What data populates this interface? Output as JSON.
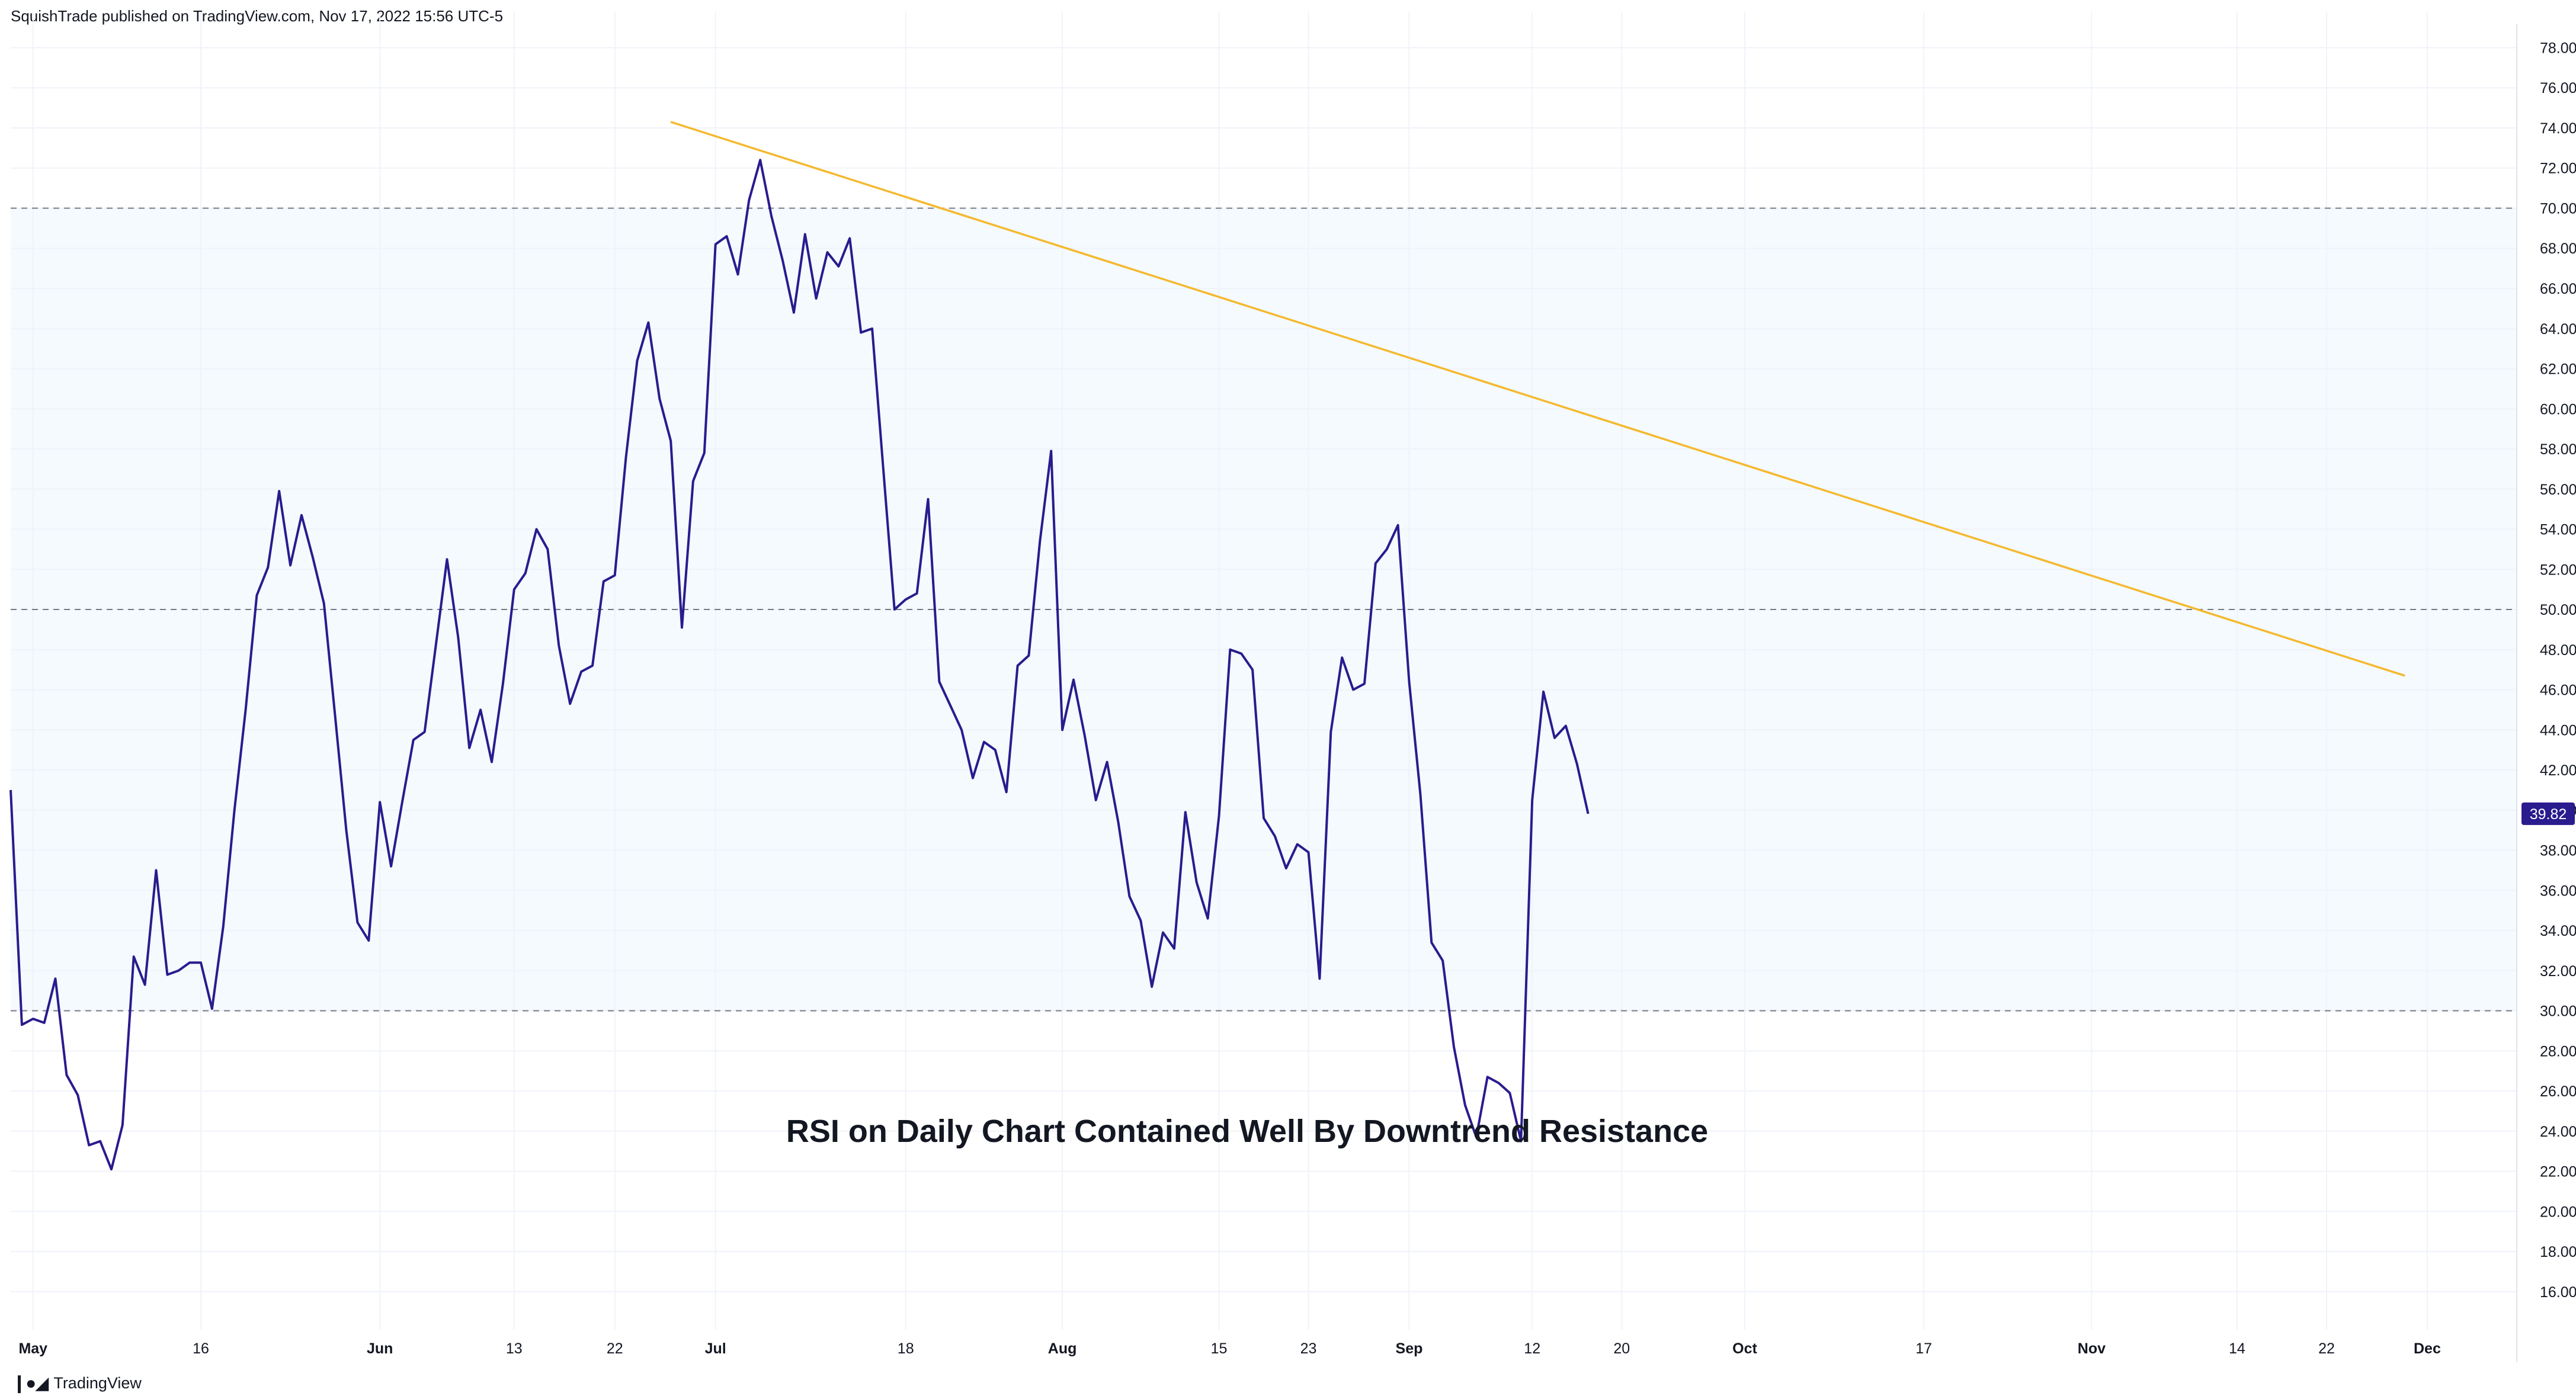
{
  "header": {
    "text": "SquishTrade published on TradingView.com, Nov 17, 2022 15:56 UTC-5"
  },
  "footer": {
    "logo_icon": "tradingview-logo-icon",
    "brand": "TradingView"
  },
  "colors": {
    "rsi_line": "#2a1b8e",
    "trendline": "#f5b82e",
    "band_fill": "#f4fafd",
    "level_line": "#787b86",
    "grid": "#f0f3fa",
    "last_tag_bg": "#2a1b8e"
  },
  "chart_data": {
    "type": "line",
    "title": "",
    "annotation": "RSI on Daily Chart Contained Well By Downtrend Resistance",
    "y_axis_side": "right",
    "ylim": [
      14.4,
      78.9
    ],
    "yticks": [
      "16.00",
      "18.00",
      "20.00",
      "22.00",
      "24.00",
      "26.00",
      "28.00",
      "30.00",
      "32.00",
      "34.00",
      "36.00",
      "38.00",
      "40.00",
      "42.00",
      "44.00",
      "46.00",
      "48.00",
      "50.00",
      "52.00",
      "54.00",
      "56.00",
      "58.00",
      "60.00",
      "62.00",
      "64.00",
      "66.00",
      "68.00",
      "70.00",
      "72.00",
      "74.00",
      "76.00",
      "78.00"
    ],
    "x_ticks": [
      {
        "label": "May",
        "day": 0,
        "major": true
      },
      {
        "label": "16",
        "day": 15,
        "major": false
      },
      {
        "label": "Jun",
        "day": 31,
        "major": true
      },
      {
        "label": "13",
        "day": 43,
        "major": false
      },
      {
        "label": "22",
        "day": 52,
        "major": false
      },
      {
        "label": "Jul",
        "day": 61,
        "major": true
      },
      {
        "label": "18",
        "day": 78,
        "major": false
      },
      {
        "label": "Aug",
        "day": 92,
        "major": true
      },
      {
        "label": "15",
        "day": 106,
        "major": false
      },
      {
        "label": "23",
        "day": 114,
        "major": false
      },
      {
        "label": "Sep",
        "day": 123,
        "major": true
      },
      {
        "label": "12",
        "day": 134,
        "major": false
      },
      {
        "label": "20",
        "day": 142,
        "major": false
      },
      {
        "label": "Oct",
        "day": 153,
        "major": true
      },
      {
        "label": "17",
        "day": 169,
        "major": false
      },
      {
        "label": "Nov",
        "day": 184,
        "major": true
      },
      {
        "label": "14",
        "day": 197,
        "major": false
      },
      {
        "label": "22",
        "day": 205,
        "major": false
      },
      {
        "label": "Dec",
        "day": 214,
        "major": true
      }
    ],
    "x_range_days": [
      -2,
      222
    ],
    "levels": [
      70,
      50,
      30
    ],
    "band": [
      30,
      70
    ],
    "last_value": {
      "label": "39.82",
      "value": 39.82
    },
    "series": [
      {
        "values": [
          {
            "x": -2,
            "y": 41.0
          },
          {
            "x": -1,
            "y": 29.3
          },
          {
            "x": 0,
            "y": 29.6
          },
          {
            "x": 1,
            "y": 29.4
          },
          {
            "x": 2,
            "y": 31.6
          },
          {
            "x": 3,
            "y": 26.8
          },
          {
            "x": 4,
            "y": 25.8
          },
          {
            "x": 5,
            "y": 23.3
          },
          {
            "x": 6,
            "y": 23.5
          },
          {
            "x": 7,
            "y": 22.1
          },
          {
            "x": 8,
            "y": 24.3
          },
          {
            "x": 9,
            "y": 32.7
          },
          {
            "x": 10,
            "y": 31.3
          },
          {
            "x": 11,
            "y": 37.0
          },
          {
            "x": 12,
            "y": 31.8
          },
          {
            "x": 13,
            "y": 32.0
          },
          {
            "x": 14,
            "y": 32.4
          },
          {
            "x": 15,
            "y": 32.4
          },
          {
            "x": 16,
            "y": 30.1
          },
          {
            "x": 17,
            "y": 34.2
          },
          {
            "x": 18,
            "y": 40.0
          },
          {
            "x": 19,
            "y": 45.0
          },
          {
            "x": 20,
            "y": 50.7
          },
          {
            "x": 21,
            "y": 52.1
          },
          {
            "x": 22,
            "y": 55.9
          },
          {
            "x": 23,
            "y": 52.2
          },
          {
            "x": 24,
            "y": 54.7
          },
          {
            "x": 25,
            "y": 52.6
          },
          {
            "x": 26,
            "y": 50.3
          },
          {
            "x": 27,
            "y": 44.7
          },
          {
            "x": 28,
            "y": 39.0
          },
          {
            "x": 29,
            "y": 34.4
          },
          {
            "x": 30,
            "y": 33.5
          },
          {
            "x": 31,
            "y": 40.4
          },
          {
            "x": 32,
            "y": 37.2
          },
          {
            "x": 33,
            "y": 40.4
          },
          {
            "x": 34,
            "y": 43.5
          },
          {
            "x": 35,
            "y": 43.9
          },
          {
            "x": 36,
            "y": 48.2
          },
          {
            "x": 37,
            "y": 52.5
          },
          {
            "x": 38,
            "y": 48.6
          },
          {
            "x": 39,
            "y": 43.1
          },
          {
            "x": 40,
            "y": 45.0
          },
          {
            "x": 41,
            "y": 42.4
          },
          {
            "x": 42,
            "y": 46.3
          },
          {
            "x": 43,
            "y": 51.0
          },
          {
            "x": 44,
            "y": 51.8
          },
          {
            "x": 45,
            "y": 54.0
          },
          {
            "x": 46,
            "y": 53.0
          },
          {
            "x": 47,
            "y": 48.2
          },
          {
            "x": 48,
            "y": 45.3
          },
          {
            "x": 49,
            "y": 46.9
          },
          {
            "x": 50,
            "y": 47.2
          },
          {
            "x": 51,
            "y": 51.4
          },
          {
            "x": 52,
            "y": 51.7
          },
          {
            "x": 53,
            "y": 57.6
          },
          {
            "x": 54,
            "y": 62.4
          },
          {
            "x": 55,
            "y": 64.3
          },
          {
            "x": 56,
            "y": 60.5
          },
          {
            "x": 57,
            "y": 58.4
          },
          {
            "x": 58,
            "y": 49.1
          },
          {
            "x": 59,
            "y": 56.4
          },
          {
            "x": 60,
            "y": 57.8
          },
          {
            "x": 61,
            "y": 68.2
          },
          {
            "x": 62,
            "y": 68.6
          },
          {
            "x": 63,
            "y": 66.7
          },
          {
            "x": 64,
            "y": 70.4
          },
          {
            "x": 65,
            "y": 72.4
          },
          {
            "x": 66,
            "y": 69.6
          },
          {
            "x": 67,
            "y": 67.4
          },
          {
            "x": 68,
            "y": 64.8
          },
          {
            "x": 69,
            "y": 68.7
          },
          {
            "x": 70,
            "y": 65.5
          },
          {
            "x": 71,
            "y": 67.8
          },
          {
            "x": 72,
            "y": 67.1
          },
          {
            "x": 73,
            "y": 68.5
          },
          {
            "x": 74,
            "y": 63.8
          },
          {
            "x": 75,
            "y": 64.0
          },
          {
            "x": 76,
            "y": 57.0
          },
          {
            "x": 77,
            "y": 50.0
          },
          {
            "x": 78,
            "y": 50.5
          },
          {
            "x": 79,
            "y": 50.8
          },
          {
            "x": 80,
            "y": 55.5
          },
          {
            "x": 81,
            "y": 46.4
          },
          {
            "x": 82,
            "y": 45.2
          },
          {
            "x": 83,
            "y": 44.0
          },
          {
            "x": 84,
            "y": 41.6
          },
          {
            "x": 85,
            "y": 43.4
          },
          {
            "x": 86,
            "y": 43.0
          },
          {
            "x": 87,
            "y": 40.9
          },
          {
            "x": 88,
            "y": 47.2
          },
          {
            "x": 89,
            "y": 47.7
          },
          {
            "x": 90,
            "y": 53.4
          },
          {
            "x": 91,
            "y": 57.9
          },
          {
            "x": 92,
            "y": 44.0
          },
          {
            "x": 93,
            "y": 46.5
          },
          {
            "x": 94,
            "y": 43.7
          },
          {
            "x": 95,
            "y": 40.5
          },
          {
            "x": 96,
            "y": 42.4
          },
          {
            "x": 97,
            "y": 39.4
          },
          {
            "x": 98,
            "y": 35.7
          },
          {
            "x": 99,
            "y": 34.5
          },
          {
            "x": 100,
            "y": 31.2
          },
          {
            "x": 101,
            "y": 33.9
          },
          {
            "x": 102,
            "y": 33.1
          },
          {
            "x": 103,
            "y": 39.9
          },
          {
            "x": 104,
            "y": 36.4
          },
          {
            "x": 105,
            "y": 34.6
          },
          {
            "x": 106,
            "y": 39.7
          },
          {
            "x": 107,
            "y": 48.0
          },
          {
            "x": 108,
            "y": 47.8
          },
          {
            "x": 109,
            "y": 47.0
          },
          {
            "x": 110,
            "y": 39.6
          },
          {
            "x": 111,
            "y": 38.7
          },
          {
            "x": 112,
            "y": 37.1
          },
          {
            "x": 113,
            "y": 38.3
          },
          {
            "x": 114,
            "y": 37.9
          },
          {
            "x": 115,
            "y": 31.6
          },
          {
            "x": 116,
            "y": 43.9
          },
          {
            "x": 117,
            "y": 47.6
          },
          {
            "x": 118,
            "y": 46.0
          },
          {
            "x": 119,
            "y": 46.3
          },
          {
            "x": 120,
            "y": 52.3
          },
          {
            "x": 121,
            "y": 53.0
          },
          {
            "x": 122,
            "y": 54.2
          },
          {
            "x": 123,
            "y": 46.4
          },
          {
            "x": 124,
            "y": 40.8
          },
          {
            "x": 125,
            "y": 33.4
          },
          {
            "x": 126,
            "y": 32.5
          },
          {
            "x": 127,
            "y": 28.2
          },
          {
            "x": 128,
            "y": 25.3
          },
          {
            "x": 129,
            "y": 23.7
          },
          {
            "x": 130,
            "y": 26.7
          },
          {
            "x": 131,
            "y": 26.4
          },
          {
            "x": 132,
            "y": 25.9
          },
          {
            "x": 133,
            "y": 23.5
          },
          {
            "x": 134,
            "y": 40.5
          },
          {
            "x": 135,
            "y": 45.9
          },
          {
            "x": 136,
            "y": 43.6
          },
          {
            "x": 137,
            "y": 44.2
          },
          {
            "x": 138,
            "y": 42.3
          },
          {
            "x": 139,
            "y": 39.82
          }
        ]
      }
    ],
    "trendline": {
      "from": {
        "x": 57,
        "y": 74.3
      },
      "to": {
        "x": 212,
        "y": 46.7
      }
    }
  }
}
